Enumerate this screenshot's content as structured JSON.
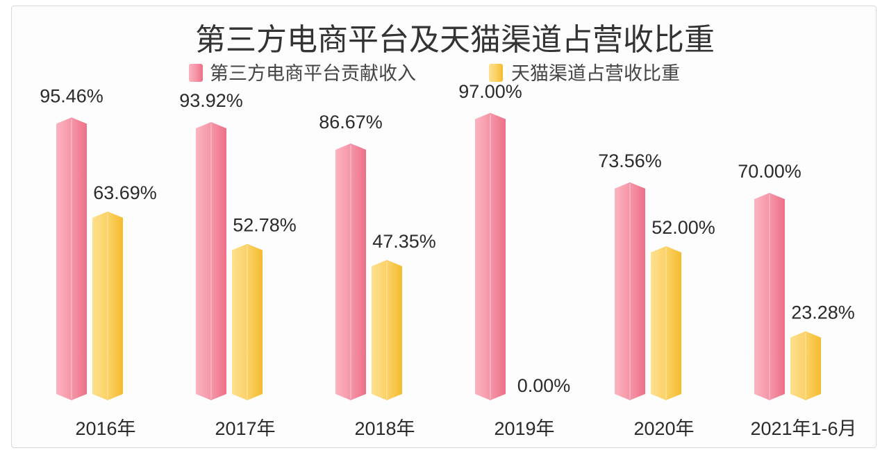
{
  "chart_data": {
    "type": "bar",
    "title": "第三方电商平台及天猫渠道占营收比重",
    "categories": [
      "2016年",
      "2017年",
      "2018年",
      "2019年",
      "2020年",
      "2021年1-6月"
    ],
    "series": [
      {
        "name": "第三方电商平台贡献收入",
        "values": [
          95.46,
          93.92,
          86.67,
          97.0,
          73.56,
          70.0
        ],
        "labels": [
          "95.46%",
          "93.92%",
          "86.67%",
          "97.00%",
          "73.56%",
          "70.00%"
        ],
        "color": "#f4899d"
      },
      {
        "name": "天猫渠道占营收比重",
        "values": [
          63.69,
          52.78,
          47.35,
          0.0,
          52.0,
          23.28
        ],
        "labels": [
          "63.69%",
          "52.78%",
          "47.35%",
          "0.00%",
          "52.00%",
          "23.28%"
        ],
        "color": "#fbd25a"
      }
    ],
    "ylim": [
      0,
      100
    ],
    "grid": false,
    "legend": "top-center"
  }
}
